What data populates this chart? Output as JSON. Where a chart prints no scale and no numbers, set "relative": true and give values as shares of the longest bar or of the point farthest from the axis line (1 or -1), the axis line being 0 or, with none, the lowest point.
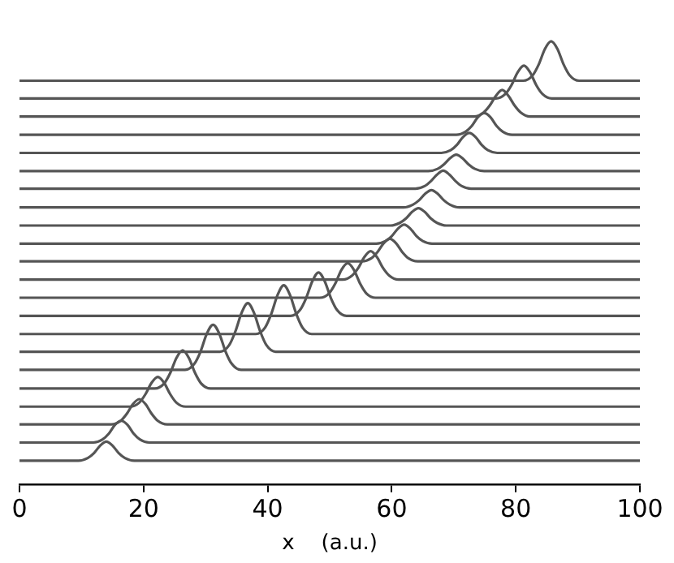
{
  "chart_data": {
    "type": "line",
    "xlabel": "x    (a.u.)",
    "xlim": [
      0,
      100
    ],
    "xticks": [
      0,
      20,
      40,
      60,
      80,
      100
    ],
    "relative": true,
    "tick_labels": "x",
    "series": [
      {
        "color": "#555555",
        "x": [
          0,
          9.5,
          11,
          12,
          13,
          14,
          15,
          16,
          17,
          18.5,
          100
        ],
        "values": [
          0.053,
          0.053,
          0.059,
          0.07,
          0.087,
          0.096,
          0.087,
          0.07,
          0.059,
          0.053,
          0.053
        ]
      },
      {
        "color": "#555555",
        "x": [
          0,
          11.9,
          13.4,
          14.4,
          15.4,
          16.4,
          17.4,
          18.4,
          19.4,
          20.9,
          100
        ],
        "values": [
          0.094,
          0.094,
          0.101,
          0.114,
          0.134,
          0.143,
          0.134,
          0.114,
          0.101,
          0.094,
          0.094
        ]
      },
      {
        "color": "#555555",
        "x": [
          0,
          14.8,
          16.3,
          17.3,
          18.3,
          19.3,
          20.3,
          21.3,
          22.3,
          23.8,
          100
        ],
        "values": [
          0.135,
          0.135,
          0.143,
          0.159,
          0.181,
          0.192,
          0.181,
          0.159,
          0.143,
          0.135,
          0.135
        ]
      },
      {
        "color": "#555555",
        "x": [
          0,
          17.8,
          19.3,
          20.3,
          21.3,
          22.3,
          23.3,
          24.3,
          25.3,
          26.8,
          100
        ],
        "values": [
          0.175,
          0.175,
          0.184,
          0.203,
          0.229,
          0.242,
          0.229,
          0.203,
          0.184,
          0.175,
          0.175
        ]
      },
      {
        "color": "#555555",
        "x": [
          0,
          21.8,
          23.3,
          24.3,
          25.3,
          26.3,
          27.3,
          28.3,
          29.3,
          30.8,
          100
        ],
        "values": [
          0.216,
          0.216,
          0.227,
          0.251,
          0.285,
          0.302,
          0.285,
          0.251,
          0.227,
          0.216,
          0.216
        ]
      },
      {
        "color": "#555555",
        "x": [
          0,
          26.7,
          28.2,
          29.2,
          30.2,
          31.2,
          32.2,
          33.2,
          34.2,
          35.7,
          100
        ],
        "values": [
          0.258,
          0.258,
          0.272,
          0.3,
          0.34,
          0.36,
          0.34,
          0.3,
          0.272,
          0.258,
          0.258
        ]
      },
      {
        "color": "#555555",
        "x": [
          0,
          32.3,
          33.8,
          34.8,
          35.8,
          36.8,
          37.8,
          38.8,
          39.8,
          41.3,
          100
        ],
        "values": [
          0.299,
          0.299,
          0.314,
          0.345,
          0.387,
          0.409,
          0.387,
          0.345,
          0.314,
          0.299,
          0.299
        ]
      },
      {
        "color": "#555555",
        "x": [
          0,
          38.1,
          39.6,
          40.6,
          41.6,
          42.6,
          43.6,
          44.6,
          45.6,
          47.1,
          100
        ],
        "values": [
          0.339,
          0.339,
          0.354,
          0.385,
          0.427,
          0.449,
          0.427,
          0.385,
          0.354,
          0.339,
          0.339
        ]
      },
      {
        "color": "#555555",
        "x": [
          0,
          43.7,
          45.2,
          46.2,
          47.2,
          48.2,
          49.2,
          50.2,
          51.2,
          52.7,
          100
        ],
        "values": [
          0.38,
          0.38,
          0.393,
          0.42,
          0.458,
          0.478,
          0.458,
          0.42,
          0.393,
          0.38,
          0.38
        ]
      },
      {
        "color": "#555555",
        "x": [
          0,
          48.4,
          49.9,
          50.9,
          51.9,
          52.9,
          53.9,
          54.9,
          55.9,
          57.4,
          100
        ],
        "values": [
          0.421,
          0.421,
          0.431,
          0.453,
          0.484,
          0.499,
          0.484,
          0.453,
          0.431,
          0.421,
          0.421
        ]
      },
      {
        "color": "#555555",
        "x": [
          0,
          52.1,
          53.6,
          54.6,
          55.6,
          56.6,
          57.6,
          58.6,
          59.6,
          61.1,
          100
        ],
        "values": [
          0.462,
          0.462,
          0.471,
          0.488,
          0.513,
          0.526,
          0.513,
          0.488,
          0.471,
          0.462,
          0.462
        ]
      },
      {
        "color": "#555555",
        "x": [
          0,
          55.2,
          56.7,
          57.7,
          58.7,
          59.7,
          60.7,
          61.7,
          62.7,
          64.2,
          100
        ],
        "values": [
          0.503,
          0.503,
          0.51,
          0.524,
          0.544,
          0.554,
          0.544,
          0.524,
          0.51,
          0.503,
          0.503
        ]
      },
      {
        "color": "#555555",
        "x": [
          0,
          57.5,
          59,
          60,
          61,
          62,
          63,
          64,
          65,
          66.5,
          100
        ],
        "values": [
          0.543,
          0.543,
          0.549,
          0.56,
          0.577,
          0.586,
          0.577,
          0.56,
          0.549,
          0.543,
          0.543
        ]
      },
      {
        "color": "#555555",
        "x": [
          0,
          59.8,
          61.3,
          62.3,
          63.3,
          64.3,
          65.3,
          66.3,
          67.3,
          68.8,
          100
        ],
        "values": [
          0.584,
          0.584,
          0.59,
          0.6,
          0.615,
          0.623,
          0.615,
          0.6,
          0.59,
          0.584,
          0.584
        ]
      },
      {
        "color": "#555555",
        "x": [
          0,
          61.9,
          63.4,
          64.4,
          65.4,
          66.4,
          67.4,
          68.4,
          69.4,
          70.9,
          100
        ],
        "values": [
          0.625,
          0.625,
          0.631,
          0.641,
          0.656,
          0.664,
          0.656,
          0.641,
          0.631,
          0.625,
          0.625
        ]
      },
      {
        "color": "#555555",
        "x": [
          0,
          63.8,
          65.3,
          66.3,
          67.3,
          68.3,
          69.3,
          70.3,
          71.3,
          72.8,
          100
        ],
        "values": [
          0.667,
          0.667,
          0.673,
          0.684,
          0.699,
          0.708,
          0.699,
          0.684,
          0.673,
          0.667,
          0.667
        ]
      },
      {
        "color": "#555555",
        "x": [
          0,
          65.9,
          67.4,
          68.4,
          69.4,
          70.4,
          71.4,
          72.4,
          73.4,
          74.9,
          100
        ],
        "values": [
          0.707,
          0.707,
          0.712,
          0.722,
          0.736,
          0.744,
          0.736,
          0.722,
          0.712,
          0.707,
          0.707
        ]
      },
      {
        "color": "#555555",
        "x": [
          0,
          68,
          69.5,
          70.5,
          71.5,
          72.5,
          73.5,
          74.5,
          75.5,
          77,
          100
        ],
        "values": [
          0.748,
          0.748,
          0.754,
          0.766,
          0.784,
          0.793,
          0.784,
          0.766,
          0.754,
          0.748,
          0.748
        ]
      },
      {
        "color": "#555555",
        "x": [
          0,
          70.4,
          71.9,
          72.9,
          73.9,
          74.9,
          75.9,
          76.9,
          77.9,
          79.4,
          100
        ],
        "values": [
          0.789,
          0.789,
          0.796,
          0.809,
          0.829,
          0.838,
          0.829,
          0.809,
          0.796,
          0.789,
          0.789
        ]
      },
      {
        "color": "#555555",
        "x": [
          0,
          73.3,
          74.8,
          75.8,
          76.8,
          77.8,
          78.8,
          79.8,
          80.8,
          82.3,
          100
        ],
        "values": [
          0.83,
          0.83,
          0.839,
          0.855,
          0.877,
          0.89,
          0.877,
          0.855,
          0.839,
          0.83,
          0.83
        ]
      },
      {
        "color": "#555555",
        "x": [
          0,
          76.8,
          78.3,
          79.3,
          80.3,
          81.3,
          82.3,
          83.3,
          84.3,
          85.8,
          100
        ],
        "values": [
          0.871,
          0.871,
          0.881,
          0.901,
          0.93,
          0.945,
          0.93,
          0.901,
          0.881,
          0.871,
          0.871
        ]
      },
      {
        "color": "#555555",
        "x": [
          0,
          81.2,
          82.7,
          83.7,
          84.7,
          85.7,
          86.7,
          87.7,
          88.7,
          90.2,
          100
        ],
        "values": [
          0.911,
          0.911,
          0.923,
          0.948,
          0.983,
          1,
          0.983,
          0.948,
          0.923,
          0.911,
          0.911
        ]
      }
    ]
  }
}
